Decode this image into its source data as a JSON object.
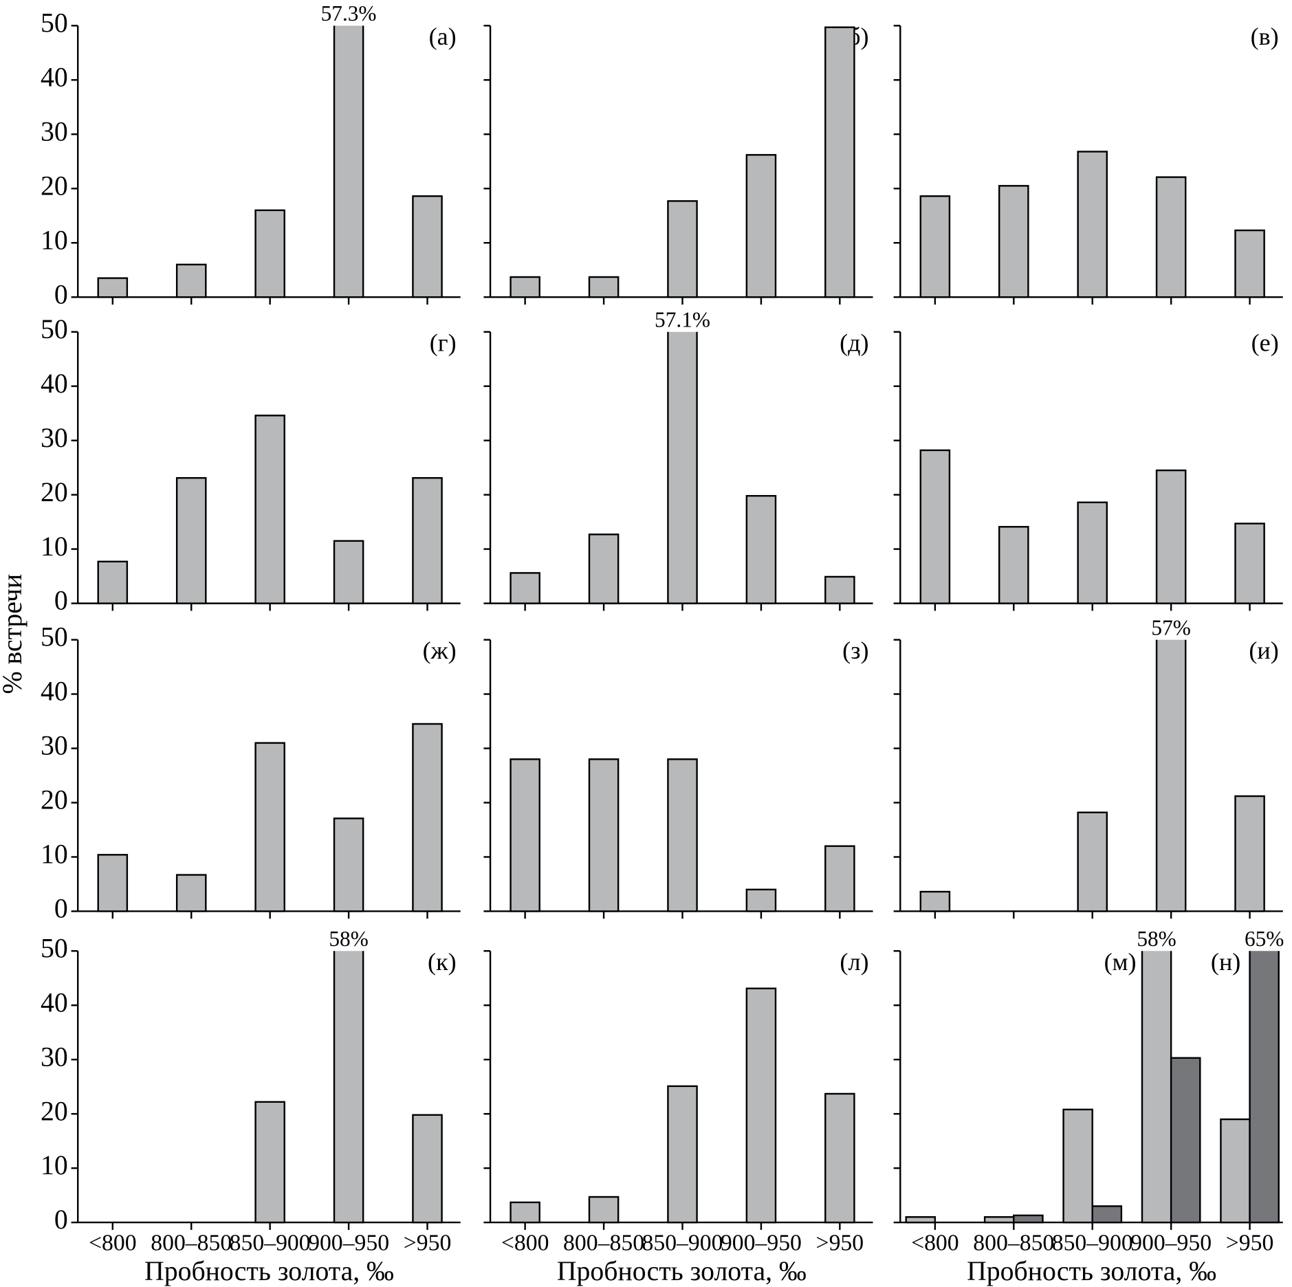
{
  "ylabel": "% встречи",
  "chart_data": [
    {
      "type": "bar",
      "label": "(а)",
      "values": [
        3.5,
        6,
        16,
        57.3,
        18.6
      ],
      "value_labels": [
        null,
        null,
        null,
        "57.3%",
        null
      ],
      "color": "#b8b9bb",
      "ylim": [
        0,
        50
      ],
      "yticks": [
        0,
        10,
        20,
        30,
        40,
        50
      ]
    },
    {
      "type": "bar",
      "label": "(б)",
      "values": [
        3.7,
        3.7,
        17.7,
        26.2,
        49.7
      ],
      "color": "#b8b9bb",
      "ylim": [
        0,
        50
      ],
      "yticks": [
        0,
        10,
        20,
        30,
        40,
        50
      ]
    },
    {
      "type": "bar",
      "label": "(в)",
      "values": [
        18.6,
        20.5,
        26.8,
        22.1,
        12.3
      ],
      "color": "#b8b9bb",
      "ylim": [
        0,
        50
      ],
      "yticks": [
        0,
        10,
        20,
        30,
        40,
        50
      ]
    },
    {
      "type": "bar",
      "label": "(г)",
      "values": [
        7.7,
        23.1,
        34.6,
        11.5,
        23.1
      ],
      "color": "#b8b9bb",
      "ylim": [
        0,
        50
      ],
      "yticks": [
        0,
        10,
        20,
        30,
        40,
        50
      ]
    },
    {
      "type": "bar",
      "label": "(д)",
      "values": [
        5.6,
        12.7,
        57.1,
        19.8,
        4.9
      ],
      "value_labels": [
        null,
        null,
        "57.1%",
        null,
        null
      ],
      "color": "#b8b9bb",
      "ylim": [
        0,
        50
      ],
      "yticks": [
        0,
        10,
        20,
        30,
        40,
        50
      ]
    },
    {
      "type": "bar",
      "label": "(е)",
      "values": [
        28.2,
        14.1,
        18.6,
        24.5,
        14.7
      ],
      "color": "#b8b9bb",
      "ylim": [
        0,
        50
      ],
      "yticks": [
        0,
        10,
        20,
        30,
        40,
        50
      ]
    },
    {
      "type": "bar",
      "label": "(ж)",
      "values": [
        10.4,
        6.7,
        31,
        17.1,
        34.5
      ],
      "color": "#b8b9bb",
      "ylim": [
        0,
        50
      ],
      "yticks": [
        0,
        10,
        20,
        30,
        40,
        50
      ]
    },
    {
      "type": "bar",
      "label": "(з)",
      "values": [
        28,
        28,
        28,
        4,
        12
      ],
      "color": "#b8b9bb",
      "ylim": [
        0,
        50
      ],
      "yticks": [
        0,
        10,
        20,
        30,
        40,
        50
      ]
    },
    {
      "type": "bar",
      "label": "(и)",
      "values": [
        3.6,
        0,
        18.2,
        57,
        21.2
      ],
      "value_labels": [
        null,
        null,
        null,
        "57%",
        null
      ],
      "color": "#b8b9bb",
      "ylim": [
        0,
        50
      ],
      "yticks": [
        0,
        10,
        20,
        30,
        40,
        50
      ]
    },
    {
      "type": "bar",
      "label": "(к)",
      "categories": [
        "<800",
        "800–850",
        "850–900",
        "900–950",
        ">950"
      ],
      "xlabel": "Пробность золота, ‰",
      "values": [
        0,
        0,
        22.2,
        58,
        19.8
      ],
      "value_labels": [
        null,
        null,
        null,
        "58%",
        null
      ],
      "color": "#b8b9bb",
      "ylim": [
        0,
        50
      ],
      "yticks": [
        0,
        10,
        20,
        30,
        40,
        50
      ]
    },
    {
      "type": "bar",
      "label": "(л)",
      "categories": [
        "<800",
        "800–850",
        "850–900",
        "900–950",
        ">950"
      ],
      "xlabel": "Пробность золота, ‰",
      "values": [
        3.7,
        4.7,
        25.1,
        43.1,
        23.7
      ],
      "color": "#b8b9bb",
      "ylim": [
        0,
        50
      ],
      "yticks": [
        0,
        10,
        20,
        30,
        40,
        50
      ]
    },
    {
      "type": "bar",
      "categories": [
        "<800",
        "800–850",
        "850–900",
        "900–950",
        ">950"
      ],
      "xlabel": "Пробность золота, ‰",
      "series": [
        {
          "name": "(м)",
          "color": "#b8b9bb",
          "values": [
            1,
            1,
            20.8,
            58,
            19
          ],
          "value_labels": [
            null,
            null,
            null,
            "58%",
            null
          ]
        },
        {
          "name": "(н)",
          "color": "#76777b",
          "values": [
            0,
            1.3,
            3,
            30.3,
            65
          ],
          "value_labels": [
            null,
            null,
            null,
            null,
            "65%"
          ]
        }
      ],
      "ylim": [
        0,
        50
      ],
      "yticks": [
        0,
        10,
        20,
        30,
        40,
        50
      ]
    }
  ]
}
